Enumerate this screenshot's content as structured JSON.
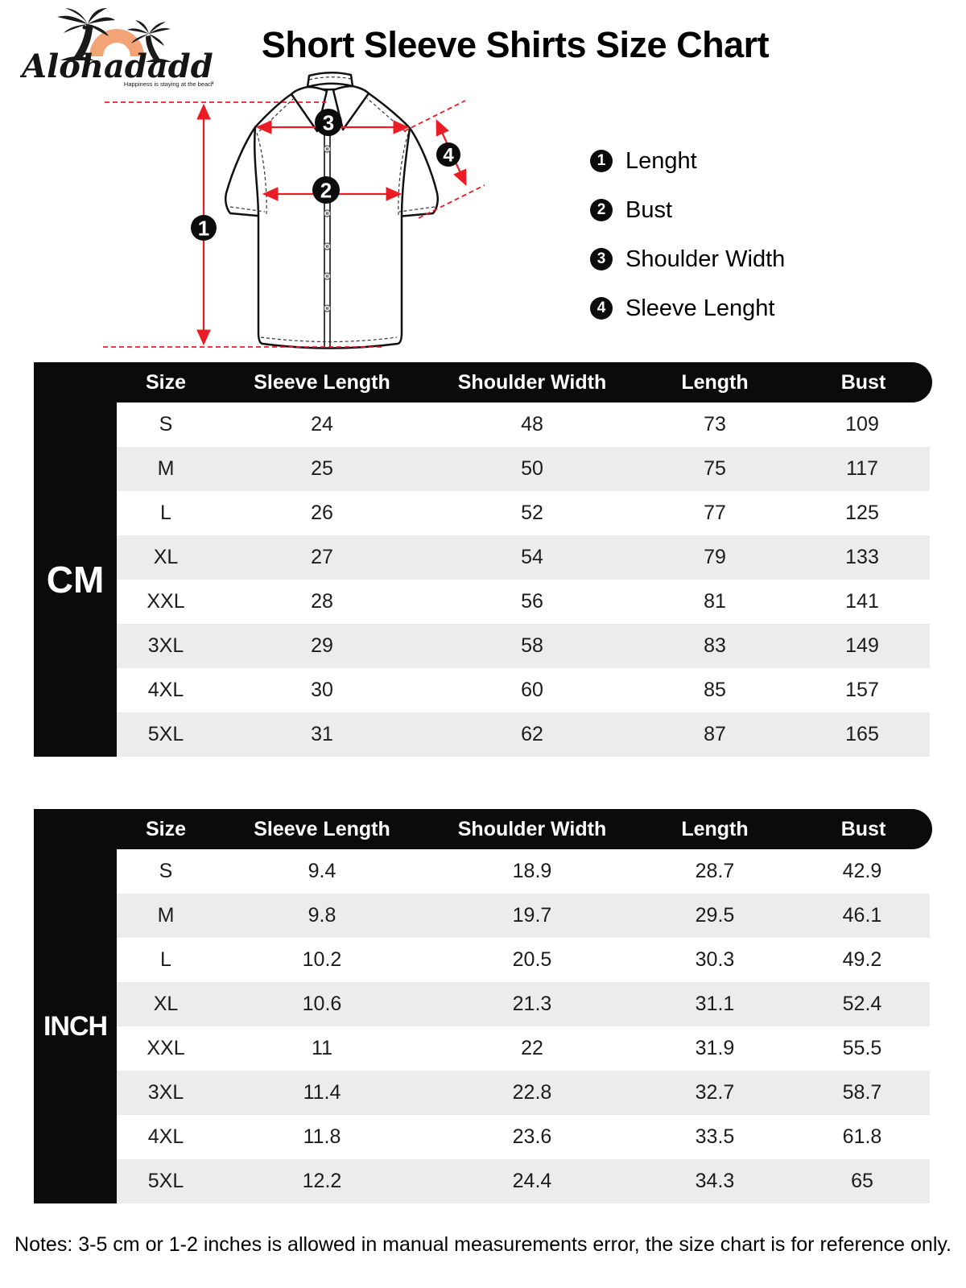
{
  "brand": {
    "name": "Alohadaddy",
    "tagline": "Happiness is staying at the beach"
  },
  "title": "Short Sleeve Shirts Size Chart",
  "legend": {
    "items": [
      {
        "num": "1",
        "label": "Lenght"
      },
      {
        "num": "2",
        "label": "Bust"
      },
      {
        "num": "3",
        "label": "Shoulder Width"
      },
      {
        "num": "4",
        "label": "Sleeve Lenght"
      }
    ]
  },
  "tables": {
    "columns": [
      "Size",
      "Sleeve Length",
      "Shoulder Width",
      "Length",
      "Bust"
    ],
    "cm": {
      "unit": "CM",
      "rows": [
        [
          "S",
          "24",
          "48",
          "73",
          "109"
        ],
        [
          "M",
          "25",
          "50",
          "75",
          "117"
        ],
        [
          "L",
          "26",
          "52",
          "77",
          "125"
        ],
        [
          "XL",
          "27",
          "54",
          "79",
          "133"
        ],
        [
          "XXL",
          "28",
          "56",
          "81",
          "141"
        ],
        [
          "3XL",
          "29",
          "58",
          "83",
          "149"
        ],
        [
          "4XL",
          "30",
          "60",
          "85",
          "157"
        ],
        [
          "5XL",
          "31",
          "62",
          "87",
          "165"
        ]
      ]
    },
    "inch": {
      "unit": "INCH",
      "rows": [
        [
          "S",
          "9.4",
          "18.9",
          "28.7",
          "42.9"
        ],
        [
          "M",
          "9.8",
          "19.7",
          "29.5",
          "46.1"
        ],
        [
          "L",
          "10.2",
          "20.5",
          "30.3",
          "49.2"
        ],
        [
          "XL",
          "10.6",
          "21.3",
          "31.1",
          "52.4"
        ],
        [
          "XXL",
          "11",
          "22",
          "31.9",
          "55.5"
        ],
        [
          "3XL",
          "11.4",
          "22.8",
          "32.7",
          "58.7"
        ],
        [
          "4XL",
          "11.8",
          "23.6",
          "33.5",
          "61.8"
        ],
        [
          "5XL",
          "12.2",
          "24.4",
          "34.3",
          "65"
        ]
      ]
    }
  },
  "colors": {
    "accent_red": "#ec1c24",
    "table_black": "#0b0b0b",
    "row_gray": "#ececec",
    "logo_orange": "#f2a477"
  },
  "notes": "Notes: 3-5 cm or 1-2 inches is allowed in manual measurements error, the size chart is for reference only."
}
